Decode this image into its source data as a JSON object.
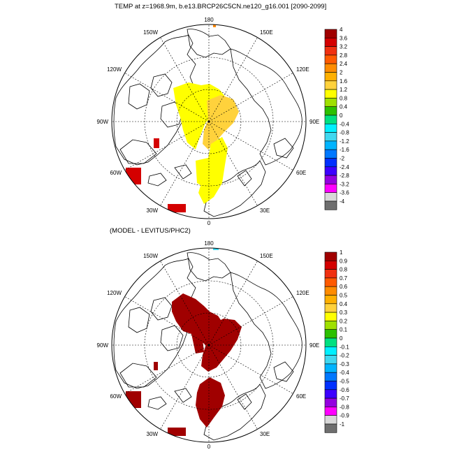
{
  "chart_data": [
    {
      "type": "polar-map",
      "title": "TEMP at z=1968.9m, b.e13.BRCP26C5CN.ne120_g16.001 [2090-2099]",
      "projection": "north-polar-stereographic",
      "longitude_labels": [
        "180",
        "150E",
        "120E",
        "90E",
        "60E",
        "30E",
        "0",
        "30W",
        "60W",
        "90W",
        "120W",
        "150W"
      ],
      "colorbar": {
        "labels": [
          "4",
          "3.6",
          "3.2",
          "2.8",
          "2.4",
          "2",
          "1.6",
          "1.2",
          "0.8",
          "0.4",
          "0",
          "-0.4",
          "-0.8",
          "-1.2",
          "-1.6",
          "-2",
          "-2.4",
          "-2.8",
          "-3.2",
          "-3.6",
          "-4"
        ],
        "colors": [
          "#a00000",
          "#d40000",
          "#f03010",
          "#ff5a00",
          "#ff8c00",
          "#ffb000",
          "#ffd23c",
          "#ffff00",
          "#9fe000",
          "#2cc000",
          "#00e080",
          "#00f0ff",
          "#40d8f0",
          "#00b4ff",
          "#0078ff",
          "#0030ff",
          "#3c00ff",
          "#9400e0",
          "#ff00ff",
          "#d8d8d8",
          "#6e6e6e"
        ]
      },
      "field_colors": [
        "#ffff00",
        "#ffd23c",
        "#d40000",
        "#ff8c00"
      ]
    },
    {
      "type": "polar-map",
      "title": "(MODEL - LEVITUS/PHC2)",
      "projection": "north-polar-stereographic",
      "longitude_labels": [
        "180",
        "150E",
        "120E",
        "90E",
        "60E",
        "30E",
        "0",
        "30W",
        "60W",
        "90W",
        "120W",
        "150W"
      ],
      "colorbar": {
        "labels": [
          "1",
          "0.9",
          "0.8",
          "0.7",
          "0.6",
          "0.5",
          "0.4",
          "0.3",
          "0.2",
          "0.1",
          "0",
          "-0.1",
          "-0.2",
          "-0.3",
          "-0.4",
          "-0.5",
          "-0.6",
          "-0.7",
          "-0.8",
          "-0.9",
          "-1"
        ],
        "colors": [
          "#a00000",
          "#d40000",
          "#f03010",
          "#ff5a00",
          "#ff8c00",
          "#ffb000",
          "#ffd23c",
          "#ffff00",
          "#9fe000",
          "#2cc000",
          "#00e080",
          "#00f0ff",
          "#40d8f0",
          "#00b4ff",
          "#0078ff",
          "#0030ff",
          "#3c00ff",
          "#9400e0",
          "#ff00ff",
          "#d8d8d8",
          "#6e6e6e"
        ]
      },
      "field_colors": [
        "#a00000",
        "#40d8f0"
      ]
    }
  ]
}
